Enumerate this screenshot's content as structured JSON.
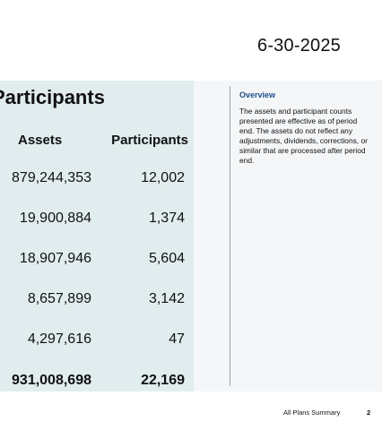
{
  "header": {
    "date": "6-30-2025"
  },
  "table": {
    "title": "Participants",
    "columns": {
      "assets": "Assets",
      "participants": "Participants"
    },
    "rows": [
      {
        "assets": "879,244,353",
        "participants": "12,002"
      },
      {
        "assets": "19,900,884",
        "participants": "1,374"
      },
      {
        "assets": "18,907,946",
        "participants": "5,604"
      },
      {
        "assets": "8,657,899",
        "participants": "3,142"
      },
      {
        "assets": "4,297,616",
        "participants": "47"
      }
    ],
    "total": {
      "assets": "931,008,698",
      "participants": "22,169"
    }
  },
  "overview": {
    "title": "Overview",
    "text": "The assets and participant counts presented are effective as of period end. The assets do not reflect any adjustments, dividends, corrections, or similar that are processed after period end."
  },
  "footer": {
    "label": "All Plans Summary",
    "page": "2"
  },
  "colors": {
    "table_bg": "#e1ecee",
    "side_bg": "#f4f6f8",
    "overview_title": "#1f4e8a"
  }
}
